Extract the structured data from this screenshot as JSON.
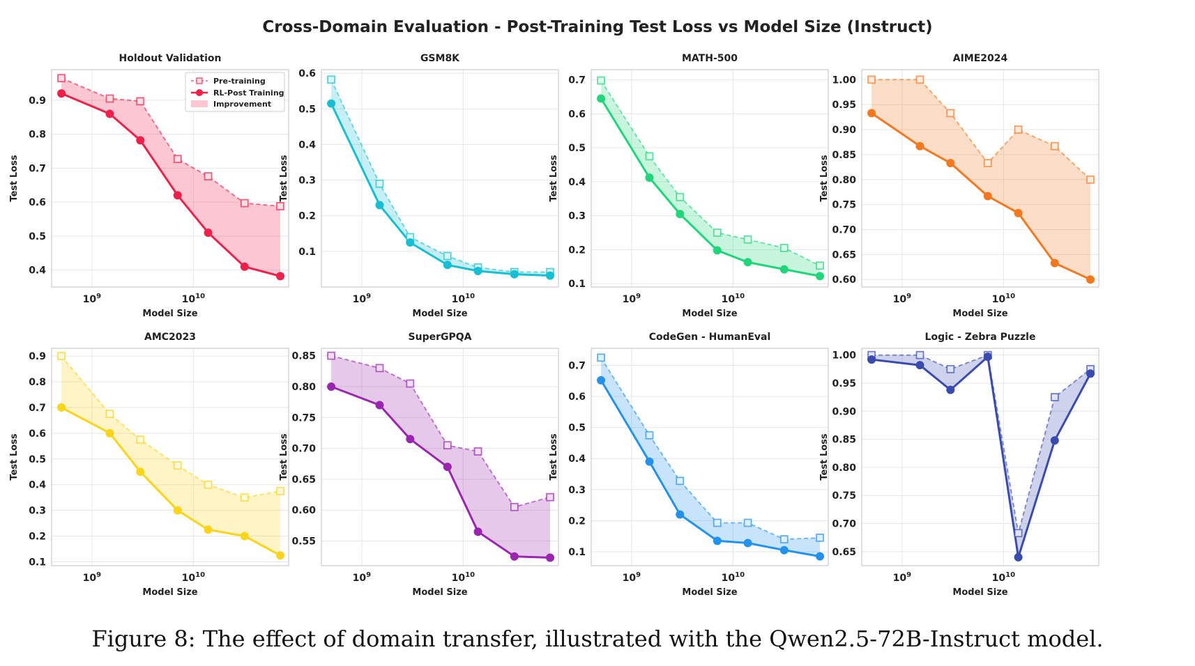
{
  "figure": {
    "suptitle": "Cross-Domain Evaluation - Post-Training Test Loss vs Model Size (Instruct)",
    "caption": "Figure 8: The effect of domain transfer, illustrated with the Qwen2.5-72B-Instruct model."
  },
  "legend": {
    "pre": "Pre-training",
    "rl": "RL-Post Training",
    "improvement": "Improvement"
  },
  "chart_data": [
    {
      "type": "line",
      "title": "Holdout Validation",
      "xlabel": "Model Size",
      "ylabel": "Test Loss",
      "xscale": "log",
      "xticks": [
        "10^9",
        "10^10"
      ],
      "color": "#f0204a",
      "x": [
        500000000.0,
        1500000000.0,
        3000000000.0,
        7000000000.0,
        14000000000.0,
        32000000000.0,
        72000000000.0
      ],
      "series": [
        {
          "name": "Pre-training",
          "values": [
            0.965,
            0.905,
            0.897,
            0.727,
            0.676,
            0.597,
            0.588
          ]
        },
        {
          "name": "RL-Post Training",
          "values": [
            0.92,
            0.86,
            0.782,
            0.62,
            0.51,
            0.41,
            0.382
          ]
        }
      ],
      "yticks": [
        0.4,
        0.5,
        0.6,
        0.7,
        0.8,
        0.9
      ],
      "ylim": [
        0.35,
        0.99
      ],
      "legend": "upper right"
    },
    {
      "type": "line",
      "title": "GSM8K",
      "xlabel": "Model Size",
      "ylabel": "Test Loss",
      "xscale": "log",
      "xticks": [
        "10^9",
        "10^10"
      ],
      "color": "#17bfd4",
      "x": [
        500000000.0,
        1500000000.0,
        3000000000.0,
        7000000000.0,
        14000000000.0,
        32000000000.0,
        72000000000.0
      ],
      "series": [
        {
          "name": "Pre-training",
          "values": [
            0.582,
            0.29,
            0.14,
            0.087,
            0.055,
            0.042,
            0.042
          ]
        },
        {
          "name": "RL-Post Training",
          "values": [
            0.515,
            0.23,
            0.125,
            0.062,
            0.045,
            0.036,
            0.032
          ]
        }
      ],
      "yticks": [
        0.1,
        0.2,
        0.3,
        0.4,
        0.5,
        0.6
      ],
      "ylim": [
        0.0,
        0.61
      ]
    },
    {
      "type": "line",
      "title": "MATH-500",
      "xlabel": "Model Size",
      "ylabel": "Test Loss",
      "xscale": "log",
      "xticks": [
        "10^9",
        "10^10"
      ],
      "color": "#1fd67a",
      "x": [
        500000000.0,
        1500000000.0,
        3000000000.0,
        7000000000.0,
        14000000000.0,
        32000000000.0,
        72000000000.0
      ],
      "series": [
        {
          "name": "Pre-training",
          "values": [
            0.698,
            0.475,
            0.355,
            0.25,
            0.23,
            0.205,
            0.153
          ]
        },
        {
          "name": "RL-Post Training",
          "values": [
            0.645,
            0.412,
            0.305,
            0.198,
            0.163,
            0.142,
            0.122
          ]
        }
      ],
      "yticks": [
        0.1,
        0.2,
        0.3,
        0.4,
        0.5,
        0.6,
        0.7
      ],
      "ylim": [
        0.09,
        0.73
      ]
    },
    {
      "type": "line",
      "title": "AIME2024",
      "xlabel": "Model Size",
      "ylabel": "Test Loss",
      "xscale": "log",
      "xticks": [
        "10^9",
        "10^10"
      ],
      "color": "#f5781f",
      "x": [
        500000000.0,
        1500000000.0,
        3000000000.0,
        7000000000.0,
        14000000000.0,
        32000000000.0,
        72000000000.0
      ],
      "series": [
        {
          "name": "Pre-training",
          "values": [
            1.0,
            1.0,
            0.933,
            0.833,
            0.9,
            0.867,
            0.8
          ]
        },
        {
          "name": "RL-Post Training",
          "values": [
            0.933,
            0.867,
            0.833,
            0.767,
            0.733,
            0.633,
            0.6
          ]
        }
      ],
      "yticks": [
        0.6,
        0.65,
        0.7,
        0.75,
        0.8,
        0.85,
        0.9,
        0.95,
        1.0
      ],
      "ylim": [
        0.585,
        1.02
      ]
    },
    {
      "type": "line",
      "title": "AMC2023",
      "xlabel": "Model Size",
      "ylabel": "Test Loss",
      "xscale": "log",
      "xticks": [
        "10^9",
        "10^10"
      ],
      "color": "#fcd419",
      "x": [
        500000000.0,
        1500000000.0,
        3000000000.0,
        7000000000.0,
        14000000000.0,
        32000000000.0,
        72000000000.0
      ],
      "series": [
        {
          "name": "Pre-training",
          "values": [
            0.9,
            0.675,
            0.575,
            0.475,
            0.4,
            0.35,
            0.375
          ]
        },
        {
          "name": "RL-Post Training",
          "values": [
            0.7,
            0.6,
            0.45,
            0.3,
            0.225,
            0.2,
            0.125
          ]
        }
      ],
      "yticks": [
        0.1,
        0.2,
        0.3,
        0.4,
        0.5,
        0.6,
        0.7,
        0.8,
        0.9
      ],
      "ylim": [
        0.085,
        0.93
      ]
    },
    {
      "type": "line",
      "title": "SuperGPQA",
      "xlabel": "Model Size",
      "ylabel": "Test Loss",
      "xscale": "log",
      "xticks": [
        "10^9",
        "10^10"
      ],
      "color": "#9b25b0",
      "x": [
        500000000.0,
        1500000000.0,
        3000000000.0,
        7000000000.0,
        14000000000.0,
        32000000000.0,
        72000000000.0
      ],
      "series": [
        {
          "name": "Pre-training",
          "values": [
            0.85,
            0.83,
            0.805,
            0.705,
            0.695,
            0.605,
            0.621
          ]
        },
        {
          "name": "RL-Post Training",
          "values": [
            0.8,
            0.77,
            0.715,
            0.67,
            0.565,
            0.525,
            0.523
          ]
        }
      ],
      "yticks": [
        0.55,
        0.6,
        0.65,
        0.7,
        0.75,
        0.8,
        0.85
      ],
      "ylim": [
        0.51,
        0.862
      ]
    },
    {
      "type": "line",
      "title": "CodeGen - HumanEval",
      "xlabel": "Model Size",
      "ylabel": "Test Loss",
      "xscale": "log",
      "xticks": [
        "10^9",
        "10^10"
      ],
      "color": "#2392ef",
      "x": [
        500000000.0,
        1500000000.0,
        3000000000.0,
        7000000000.0,
        14000000000.0,
        32000000000.0,
        72000000000.0
      ],
      "series": [
        {
          "name": "Pre-training",
          "values": [
            0.725,
            0.475,
            0.328,
            0.193,
            0.193,
            0.14,
            0.145
          ]
        },
        {
          "name": "RL-Post Training",
          "values": [
            0.652,
            0.39,
            0.22,
            0.135,
            0.128,
            0.105,
            0.085
          ]
        }
      ],
      "yticks": [
        0.1,
        0.2,
        0.3,
        0.4,
        0.5,
        0.6,
        0.7
      ],
      "ylim": [
        0.055,
        0.755
      ]
    },
    {
      "type": "line",
      "title": "Logic - Zebra Puzzle",
      "xlabel": "Model Size",
      "ylabel": "Test Loss",
      "xscale": "log",
      "xticks": [
        "10^9",
        "10^10"
      ],
      "color": "#3a4bb0",
      "x": [
        500000000.0,
        1500000000.0,
        3000000000.0,
        7000000000.0,
        14000000000.0,
        32000000000.0,
        72000000000.0
      ],
      "series": [
        {
          "name": "Pre-training",
          "values": [
            1.0,
            1.0,
            0.975,
            1.0,
            0.683,
            0.925,
            0.975
          ]
        },
        {
          "name": "RL-Post Training",
          "values": [
            0.992,
            0.982,
            0.938,
            0.997,
            0.64,
            0.848,
            0.967
          ]
        }
      ],
      "yticks": [
        0.65,
        0.7,
        0.75,
        0.8,
        0.85,
        0.9,
        0.95,
        1.0
      ],
      "ylim": [
        0.625,
        1.012
      ]
    }
  ]
}
